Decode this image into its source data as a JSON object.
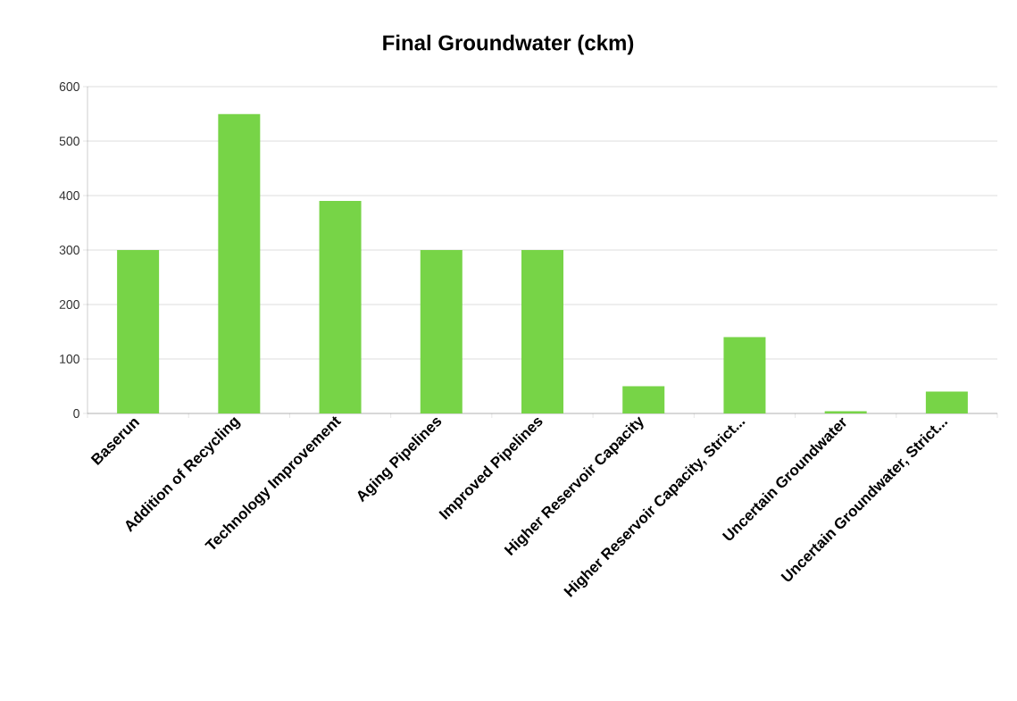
{
  "chart_data": {
    "type": "bar",
    "title": "Final Groundwater (ckm)",
    "categories": [
      "Baserun",
      "Addition of Recycling",
      "Technology Improvement",
      "Aging Pipelines",
      "Improved Pipelines",
      "Higher Reservoir Capacity",
      "Higher Reservoir Capacity, Strict...",
      "Uncertain Groundwater",
      "Uncertain Groundwater, Strict..."
    ],
    "values": [
      300,
      550,
      390,
      300,
      300,
      50,
      140,
      4,
      40
    ],
    "color": "#77d447",
    "ylim": [
      0,
      600
    ],
    "yticks": [
      0,
      100,
      200,
      300,
      400,
      500,
      600
    ],
    "grid": "y"
  }
}
